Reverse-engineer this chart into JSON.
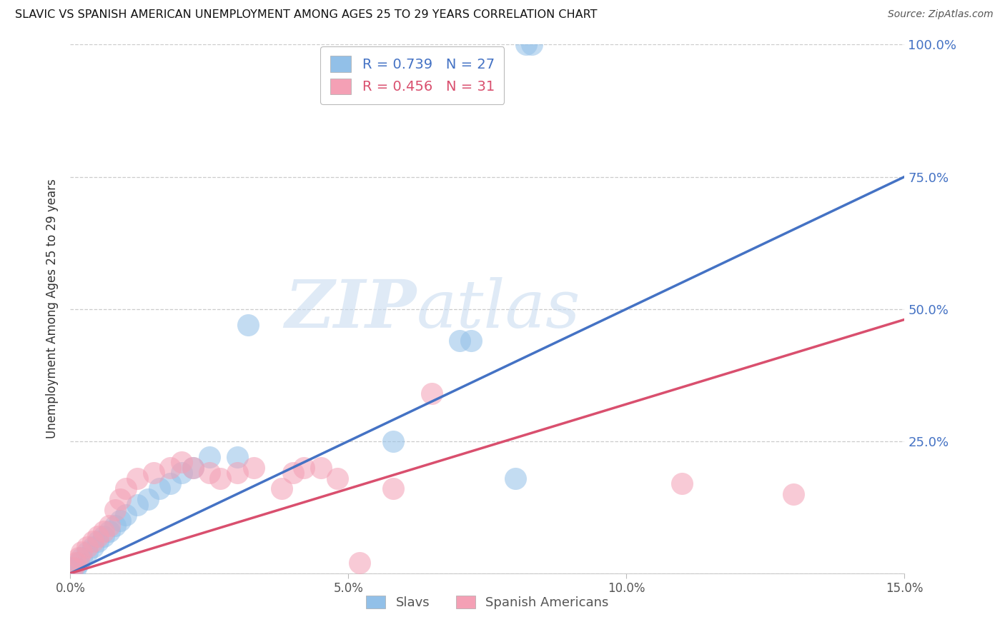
{
  "title": "SLAVIC VS SPANISH AMERICAN UNEMPLOYMENT AMONG AGES 25 TO 29 YEARS CORRELATION CHART",
  "source": "Source: ZipAtlas.com",
  "ylabel": "Unemployment Among Ages 25 to 29 years",
  "x_ticks": [
    0.0,
    0.05,
    0.1,
    0.15
  ],
  "x_tick_labels": [
    "0.0%",
    "5.0%",
    "10.0%",
    "15.0%"
  ],
  "y_ticks": [
    0.0,
    0.25,
    0.5,
    0.75,
    1.0
  ],
  "y_tick_labels_right": [
    "",
    "25.0%",
    "50.0%",
    "75.0%",
    "100.0%"
  ],
  "xlim": [
    0.0,
    0.15
  ],
  "ylim": [
    0.0,
    1.0
  ],
  "slavic_color": "#92C0E8",
  "spanish_color": "#F4A0B5",
  "line_slavic_color": "#4472C4",
  "line_spanish_color": "#D94F6E",
  "legend_label_slavic": "R = 0.739   N = 27",
  "legend_label_spanish": "R = 0.456   N = 31",
  "bottom_legend_slavs": "Slavs",
  "bottom_legend_spanish": "Spanish Americans",
  "slavic_line": [
    0.0,
    0.0,
    0.15,
    0.75
  ],
  "spanish_line": [
    0.0,
    0.0,
    0.15,
    0.48
  ],
  "slavic_x": [
    0.0005,
    0.001,
    0.0015,
    0.002,
    0.003,
    0.004,
    0.005,
    0.006,
    0.007,
    0.008,
    0.009,
    0.01,
    0.012,
    0.014,
    0.016,
    0.018,
    0.02,
    0.022,
    0.025,
    0.03,
    0.032,
    0.058,
    0.07,
    0.072,
    0.08,
    0.082,
    0.083
  ],
  "slavic_y": [
    0.01,
    0.01,
    0.02,
    0.03,
    0.04,
    0.05,
    0.06,
    0.07,
    0.08,
    0.09,
    0.1,
    0.11,
    0.13,
    0.14,
    0.16,
    0.17,
    0.19,
    0.2,
    0.22,
    0.22,
    0.47,
    0.25,
    0.44,
    0.44,
    0.18,
    1.0,
    1.0
  ],
  "spanish_x": [
    0.0005,
    0.001,
    0.0015,
    0.002,
    0.003,
    0.004,
    0.005,
    0.006,
    0.007,
    0.008,
    0.009,
    0.01,
    0.012,
    0.015,
    0.018,
    0.02,
    0.022,
    0.025,
    0.027,
    0.03,
    0.033,
    0.038,
    0.04,
    0.042,
    0.045,
    0.048,
    0.052,
    0.058,
    0.065,
    0.11,
    0.13
  ],
  "spanish_y": [
    0.01,
    0.02,
    0.03,
    0.04,
    0.05,
    0.06,
    0.07,
    0.08,
    0.09,
    0.12,
    0.14,
    0.16,
    0.18,
    0.19,
    0.2,
    0.21,
    0.2,
    0.19,
    0.18,
    0.19,
    0.2,
    0.16,
    0.19,
    0.2,
    0.2,
    0.18,
    0.02,
    0.16,
    0.34,
    0.17,
    0.15
  ]
}
